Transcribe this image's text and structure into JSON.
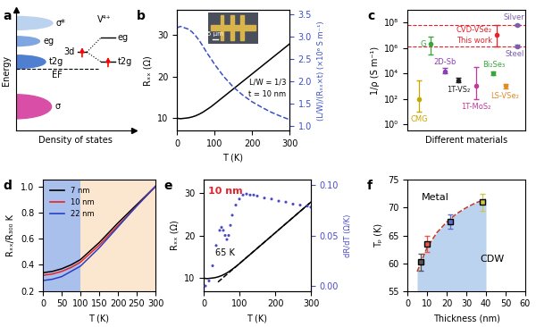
{
  "chart_data": [
    {
      "type": "diagram",
      "panel_label": "a",
      "xlabel": "Density of states",
      "ylabel": "Energy",
      "band_labels": [
        "σ*",
        "eg",
        "t2g",
        "σ"
      ],
      "fermi_label": "EF",
      "ion_label": "V⁴⁺",
      "orbital_label": "3d",
      "split_labels": [
        "eg",
        "t2g"
      ],
      "tick_labels": false
    },
    {
      "type": "line",
      "panel_label": "b",
      "xlabel": "T (K)",
      "ylabel": "Rₓₓ (Ω)",
      "y2label": "(L/W)/(Rₓₓ×t) (×10⁶ S m⁻¹)",
      "x": [
        0,
        10,
        20,
        30,
        40,
        50,
        60,
        70,
        80,
        90,
        100,
        125,
        150,
        175,
        200,
        225,
        250,
        275,
        300
      ],
      "series": [
        {
          "type": "line",
          "color": "#000000",
          "line_style": "solid",
          "values": [
            10.0,
            9.9,
            10.0,
            10.1,
            10.3,
            10.6,
            11.0,
            11.5,
            12.1,
            12.7,
            13.4,
            15.2,
            17.0,
            18.8,
            20.6,
            22.4,
            24.2,
            26.0,
            27.8
          ]
        },
        {
          "type": "line",
          "color": "#3a4fc4",
          "line_style": "dashed",
          "axis": "y2",
          "values": [
            3.2,
            3.23,
            3.2,
            3.17,
            3.11,
            3.02,
            2.91,
            2.78,
            2.64,
            2.52,
            2.39,
            2.11,
            1.88,
            1.7,
            1.55,
            1.43,
            1.32,
            1.23,
            1.15
          ]
        }
      ],
      "annotations": [
        "L/W = 1/3",
        "t = 10 nm"
      ],
      "inset_label": "5 μm",
      "xlim": [
        0,
        300
      ],
      "xticks": [
        0,
        100,
        200,
        300
      ],
      "ylim": [
        7,
        36
      ],
      "yticks": [
        10,
        20,
        30
      ],
      "y2lim": [
        0.9,
        3.6
      ],
      "y2ticks": [
        {
          "value": 1.0,
          "label": "1.0"
        },
        {
          "value": 1.5,
          "label": "1.5"
        },
        {
          "value": 2.0,
          "label": "2.0"
        },
        {
          "value": 2.5,
          "label": "2.5"
        },
        {
          "value": 3.0,
          "label": "3.0"
        },
        {
          "value": 3.5,
          "label": "3.5"
        }
      ]
    },
    {
      "type": "scatter",
      "panel_label": "c",
      "xlabel": "Different materials",
      "ylabel": "1/ρ (S m⁻¹)",
      "log": "y",
      "tick_labels": "y",
      "series": [
        {
          "type": "scatter",
          "marker": "circle",
          "x": [
            1,
            2,
            3.2,
            4.3,
            5.8,
            7.6,
            7.3,
            8.3,
            9.3,
            9.3
          ],
          "values": [
            100,
            2000000,
            15000,
            3000,
            1000,
            10000000,
            10000,
            1000,
            63000000,
            1400000
          ],
          "low": [
            10,
            300000,
            10000,
            2000,
            100,
            1400000,
            7000,
            700,
            50000000,
            1100000
          ],
          "high": [
            3000,
            8000000,
            25000,
            4500,
            30000,
            63000000,
            15000,
            1500,
            80000000,
            1800000
          ],
          "colors": [
            "#c8a800",
            "#3aa53a",
            "#8a3fb5",
            "#222222",
            "#c0399b",
            "#e8222a",
            "#3aa53a",
            "#e08a2a",
            "#7a5fb0",
            "#7a5fb0"
          ],
          "point_labels": [
            "CMG",
            "G",
            "2D-Sb",
            "1T-VS₂",
            "1T-MoS₂",
            "CVD-VSe₂",
            "Bi₂Se₃",
            "LS-VSe₂",
            "Silver",
            "Steel"
          ]
        }
      ],
      "hlines": [
        63000000,
        1400000
      ],
      "annotations": [
        "This work"
      ],
      "xlim": [
        0,
        10
      ],
      "ylim": [
        0.3,
        1000000000
      ],
      "yticks": [
        {
          "value": 1,
          "label": "10⁰"
        },
        {
          "value": 100,
          "label": "10²"
        },
        {
          "value": 10000,
          "label": "10⁴"
        },
        {
          "value": 1000000,
          "label": "10⁶"
        },
        {
          "value": 100000000,
          "label": "10⁸"
        }
      ]
    },
    {
      "type": "line",
      "panel_label": "d",
      "xlabel": "T (K)",
      "ylabel": "Rₓₓ/R₃₀₀ K",
      "x": [
        0,
        25,
        50,
        75,
        100,
        150,
        200,
        250,
        300
      ],
      "series": [
        {
          "name": "7 nm",
          "type": "line",
          "color": "#000000",
          "values": [
            0.34,
            0.35,
            0.37,
            0.4,
            0.44,
            0.57,
            0.72,
            0.86,
            1.0
          ]
        },
        {
          "name": "10 nm",
          "type": "line",
          "color": "#e8222a",
          "values": [
            0.32,
            0.33,
            0.35,
            0.38,
            0.42,
            0.55,
            0.7,
            0.85,
            1.0
          ]
        },
        {
          "name": "22 nm",
          "type": "line",
          "color": "#2a3fc4",
          "values": [
            0.28,
            0.29,
            0.31,
            0.35,
            0.39,
            0.53,
            0.69,
            0.85,
            1.0
          ]
        }
      ],
      "spans": [
        {
          "from": 0,
          "to": 100,
          "color": "#a9c0ec"
        },
        {
          "from": 100,
          "to": 300,
          "color": "#fbe6cf"
        }
      ],
      "legend": "upper left",
      "xlim": [
        0,
        300
      ],
      "xticks": [
        0,
        50,
        100,
        150,
        200,
        250,
        300
      ],
      "ylim": [
        0.2,
        1.05
      ],
      "yticks": [
        0.2,
        0.4,
        0.6,
        0.8,
        {
          "value": 1.0,
          "label": "1.0"
        }
      ]
    },
    {
      "type": "line",
      "panel_label": "e",
      "xlabel": "T (K)",
      "ylabel": "Rₓₓ (Ω)",
      "y2label": "dR/dT (Ω/K)",
      "x": [
        0,
        10,
        20,
        30,
        40,
        50,
        60,
        70,
        80,
        90,
        100,
        125,
        150,
        175,
        200,
        225,
        250,
        275,
        300
      ],
      "series": [
        {
          "type": "line",
          "color": "#000000",
          "line_style": "solid",
          "values": [
            10.0,
            9.9,
            10.0,
            10.1,
            10.3,
            10.6,
            11.0,
            11.5,
            12.1,
            12.7,
            13.4,
            15.2,
            17.0,
            18.8,
            20.6,
            22.4,
            24.2,
            26.0,
            27.8
          ]
        },
        {
          "type": "line",
          "color": "#000000",
          "line_style": "dashed",
          "x": [
            40,
            300
          ],
          "values": [
            9.1,
            27.8
          ]
        },
        {
          "type": "scatter",
          "color": "#4a4ac8",
          "marker": "circle",
          "axis": "y2",
          "x": [
            5,
            15,
            25,
            35,
            45,
            50,
            55,
            60,
            65,
            70,
            75,
            80,
            90,
            100,
            110,
            120,
            130,
            140,
            150,
            170,
            190,
            210,
            230,
            250,
            270,
            290,
            300
          ],
          "values": [
            0.0,
            0.005,
            0.02,
            0.04,
            0.055,
            0.058,
            0.055,
            0.05,
            0.046,
            0.05,
            0.06,
            0.07,
            0.08,
            0.086,
            0.09,
            0.091,
            0.09,
            0.09,
            0.089,
            0.087,
            0.086,
            0.084,
            0.083,
            0.081,
            0.08,
            0.079,
            0.078
          ]
        }
      ],
      "annotations": [
        "10 nm",
        "65 K"
      ],
      "xlim": [
        0,
        300
      ],
      "xticks": [
        0,
        100,
        200,
        300
      ],
      "ylim": [
        7,
        33
      ],
      "yticks": [
        10,
        20,
        30
      ],
      "y2lim": [
        -0.005,
        0.105
      ],
      "y2ticks": [
        {
          "value": 0.0,
          "label": "0.00"
        },
        {
          "value": 0.05,
          "label": "0.05"
        },
        {
          "value": 0.1,
          "label": "0.10"
        }
      ]
    },
    {
      "type": "scatter",
      "panel_label": "f",
      "xlabel": "Thickness (nm)",
      "ylabel": "Tₚ (K)",
      "series": [
        {
          "type": "line",
          "color": "#c0392b",
          "line_style": "dashed",
          "x": [
            5,
            10,
            15,
            20,
            25,
            30,
            35,
            40
          ],
          "values": [
            58.5,
            62.8,
            65.5,
            67.4,
            68.9,
            70.0,
            70.9,
            71.5
          ]
        },
        {
          "type": "scatter",
          "marker": "square",
          "x": [
            7,
            10,
            22,
            38
          ],
          "values": [
            60.2,
            63.5,
            67.5,
            71.0
          ],
          "errors": [
            1.5,
            1.5,
            1.3,
            1.5
          ],
          "colors": [
            "#555555",
            "#e8584a",
            "#5b6fc7",
            "#c8c84a"
          ]
        }
      ],
      "annotations": [
        "Metal",
        "CDW"
      ],
      "xlim": [
        0,
        60
      ],
      "xticks": [
        0,
        10,
        20,
        30,
        40,
        50,
        60
      ],
      "ylim": [
        55,
        75
      ],
      "yticks": [
        55,
        60,
        65,
        70,
        75
      ]
    }
  ]
}
